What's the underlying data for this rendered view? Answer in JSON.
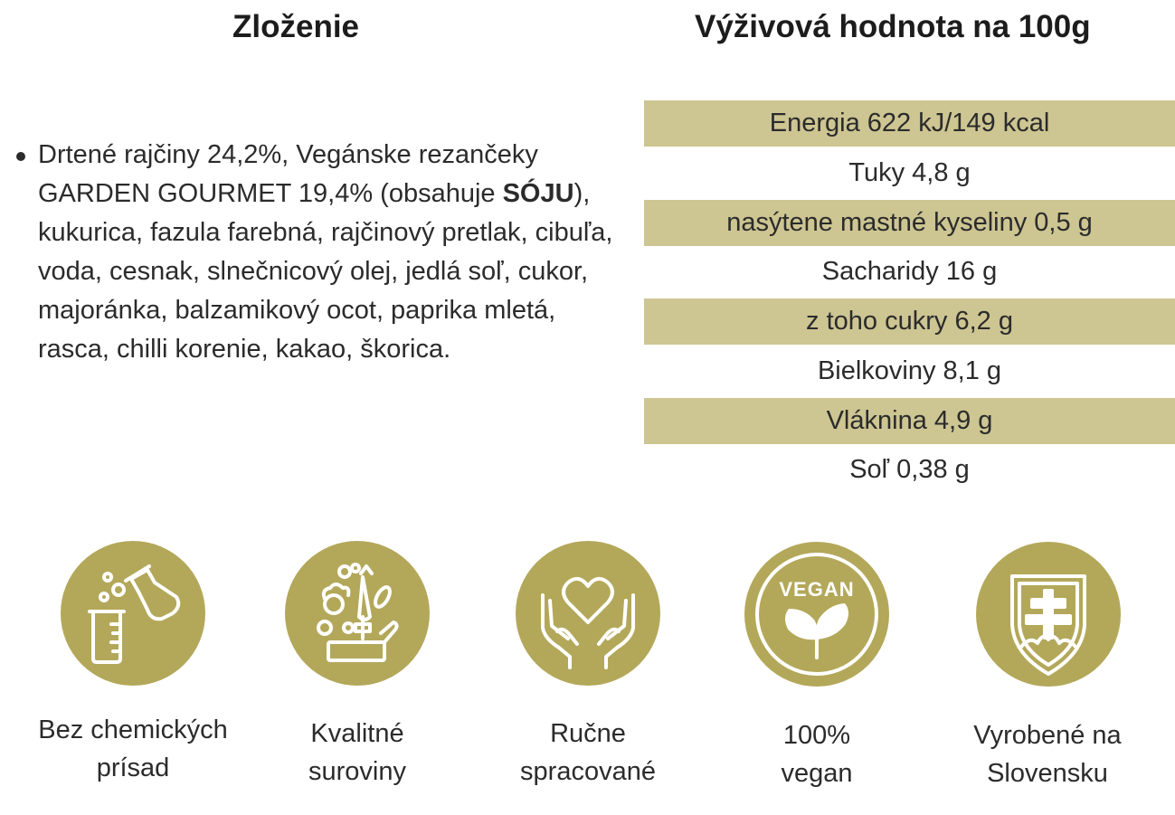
{
  "ingredients": {
    "title": "Zloženie",
    "text_before": "Drtené rajčiny 24,2%, Vegánske rezančeky GARDEN GOURMET 19,4% (obsahuje ",
    "allergen": "SÓJU",
    "text_after": "), kukurica, fazula farebná, rajčinový pretlak, cibuľa, voda, cesnak, slnečnicový olej, jedlá soľ, cukor, majoránka, balzamikový ocot, paprika mletá, rasca, chilli korenie, kakao, škorica."
  },
  "nutrition": {
    "title": "Výživová hodnota na 100g",
    "rows": [
      "Energia 622 kJ/149 kcal",
      "Tuky 4,8 g",
      "nasýtene mastné kyseliny 0,5 g",
      "Sacharidy 16 g",
      "z toho cukry 6,2 g",
      "Bielkoviny 8,1 g",
      "Vláknina 4,9 g",
      "Soľ 0,38 g"
    ]
  },
  "badges": [
    {
      "icon": "lab-flask-icon",
      "line1": "Bez chemických",
      "line2": "prísad"
    },
    {
      "icon": "vegetables-icon",
      "line1": "Kvalitné",
      "line2": "suroviny"
    },
    {
      "icon": "heart-hands-icon",
      "line1": "Ručne",
      "line2": "spracované"
    },
    {
      "icon": "vegan-leaf-icon",
      "icon_text": "VEGAN",
      "line1": "100%",
      "line2": "vegan"
    },
    {
      "icon": "slovak-emblem-icon",
      "line1": "Vyrobené na",
      "line2": "Slovensku"
    }
  ],
  "colors": {
    "accent_gold": "#b3a85a",
    "table_shade": "#cdc592",
    "text": "#2b2b2b"
  }
}
